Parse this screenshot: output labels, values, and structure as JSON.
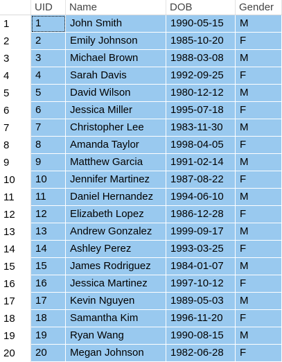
{
  "columns": {
    "rownum": "",
    "uid": "UID",
    "name": "Name",
    "dob": "DOB",
    "gender": "Gender"
  },
  "rows": [
    {
      "n": "1",
      "uid": "1",
      "name": "John Smith",
      "dob": "1990-05-15",
      "gender": "M"
    },
    {
      "n": "2",
      "uid": "2",
      "name": "Emily Johnson",
      "dob": "1985-10-20",
      "gender": "F"
    },
    {
      "n": "3",
      "uid": "3",
      "name": "Michael Brown",
      "dob": "1988-03-08",
      "gender": "M"
    },
    {
      "n": "4",
      "uid": "4",
      "name": "Sarah Davis",
      "dob": "1992-09-25",
      "gender": "F"
    },
    {
      "n": "5",
      "uid": "5",
      "name": "David Wilson",
      "dob": "1980-12-12",
      "gender": "M"
    },
    {
      "n": "6",
      "uid": "6",
      "name": "Jessica Miller",
      "dob": "1995-07-18",
      "gender": "F"
    },
    {
      "n": "7",
      "uid": "7",
      "name": "Christopher Lee",
      "dob": "1983-11-30",
      "gender": "M"
    },
    {
      "n": "8",
      "uid": "8",
      "name": "Amanda Taylor",
      "dob": "1998-04-05",
      "gender": "F"
    },
    {
      "n": "9",
      "uid": "9",
      "name": "Matthew Garcia",
      "dob": "1991-02-14",
      "gender": "M"
    },
    {
      "n": "10",
      "uid": "10",
      "name": "Jennifer Martinez",
      "dob": "1987-08-22",
      "gender": "F"
    },
    {
      "n": "11",
      "uid": "11",
      "name": "Daniel Hernandez",
      "dob": "1994-06-10",
      "gender": "M"
    },
    {
      "n": "12",
      "uid": "12",
      "name": "Elizabeth Lopez",
      "dob": "1986-12-28",
      "gender": "F"
    },
    {
      "n": "13",
      "uid": "13",
      "name": "Andrew Gonzalez",
      "dob": "1999-09-17",
      "gender": "M"
    },
    {
      "n": "14",
      "uid": "14",
      "name": "Ashley Perez",
      "dob": "1993-03-25",
      "gender": "F"
    },
    {
      "n": "15",
      "uid": "15",
      "name": "James Rodriguez",
      "dob": "1984-01-07",
      "gender": "M"
    },
    {
      "n": "16",
      "uid": "16",
      "name": "Jessica Martinez",
      "dob": "1997-10-12",
      "gender": "F"
    },
    {
      "n": "17",
      "uid": "17",
      "name": "Kevin Nguyen",
      "dob": "1989-05-03",
      "gender": "M"
    },
    {
      "n": "18",
      "uid": "18",
      "name": "Samantha Kim",
      "dob": "1996-11-20",
      "gender": "F"
    },
    {
      "n": "19",
      "uid": "19",
      "name": "Ryan Wang",
      "dob": "1990-08-15",
      "gender": "M"
    },
    {
      "n": "20",
      "uid": "20",
      "name": "Megan Johnson",
      "dob": "1982-06-28",
      "gender": "F"
    }
  ],
  "colors": {
    "selection": "#99c9ef",
    "header_text": "#444444"
  }
}
